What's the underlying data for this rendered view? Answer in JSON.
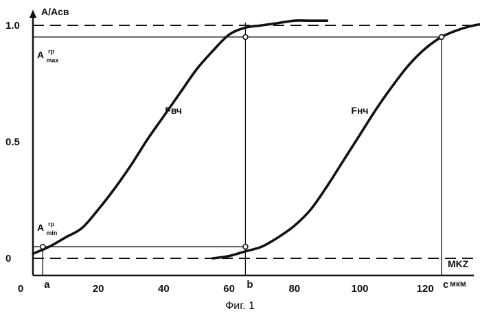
{
  "caption": "Фиг. 1",
  "chart_data": {
    "type": "line",
    "title": "",
    "xlabel": "мкм",
    "ylabel": "A/Aсв",
    "xlim": [
      -2,
      140
    ],
    "ylim": [
      -0.06,
      1.03
    ],
    "x_ticks": [
      {
        "value": 0,
        "label": "0"
      },
      {
        "value": 20,
        "label": "20"
      },
      {
        "value": 40,
        "label": "40"
      },
      {
        "value": 60,
        "label": "60"
      },
      {
        "value": 80,
        "label": "80"
      },
      {
        "value": 100,
        "label": "100"
      },
      {
        "value": 120,
        "label": "120"
      }
    ],
    "y_ticks": [
      {
        "value": 0,
        "label": "0"
      },
      {
        "value": 0.5,
        "label": "0.5"
      },
      {
        "value": 1.0,
        "label": "1.0"
      }
    ],
    "series": [
      {
        "name": "Fвч",
        "label_at": [
          43,
          0.62
        ],
        "x": [
          0,
          5,
          10,
          15,
          20,
          25,
          30,
          35,
          40,
          45,
          50,
          55,
          60,
          65,
          70,
          75,
          80,
          85,
          90
        ],
        "y": [
          0.02,
          0.05,
          0.09,
          0.13,
          0.21,
          0.3,
          0.4,
          0.51,
          0.61,
          0.71,
          0.81,
          0.89,
          0.96,
          0.99,
          1.0,
          1.01,
          1.02,
          1.02,
          1.02
        ]
      },
      {
        "name": "Fнч",
        "label_at": [
          100,
          0.62
        ],
        "x": [
          55,
          60,
          65,
          70,
          75,
          80,
          85,
          90,
          95,
          100,
          105,
          110,
          115,
          120,
          125,
          130,
          135,
          140
        ],
        "y": [
          0.0,
          0.01,
          0.03,
          0.05,
          0.09,
          0.14,
          0.21,
          0.31,
          0.42,
          0.53,
          0.64,
          0.74,
          0.83,
          0.9,
          0.95,
          0.98,
          1.0,
          1.01
        ]
      }
    ],
    "dashed_levels": [
      {
        "y": 1.0,
        "name": "ceiling"
      },
      {
        "y": 0.0,
        "name": "floor"
      }
    ],
    "horizontal_refs": [
      {
        "y": 0.95,
        "name": "a-max-line"
      },
      {
        "y": 0.05,
        "name": "a-min-line"
      }
    ],
    "vertical_markers": [
      {
        "x": 3,
        "label": "a"
      },
      {
        "x": 65,
        "label": "b"
      },
      {
        "x": 125,
        "label": "c"
      }
    ],
    "points": [
      {
        "x": 3,
        "y": 0.05
      },
      {
        "x": 65,
        "y": 0.05
      },
      {
        "x": 65,
        "y": 0.95
      },
      {
        "x": 125,
        "y": 0.95
      }
    ],
    "annotations": {
      "a_max": {
        "main": "A",
        "sup": "гр",
        "sub": "max"
      },
      "a_min": {
        "main": "A",
        "sup": "гр",
        "sub": "min"
      },
      "mkz": "MKZ"
    },
    "grid": false,
    "legend": "none"
  }
}
